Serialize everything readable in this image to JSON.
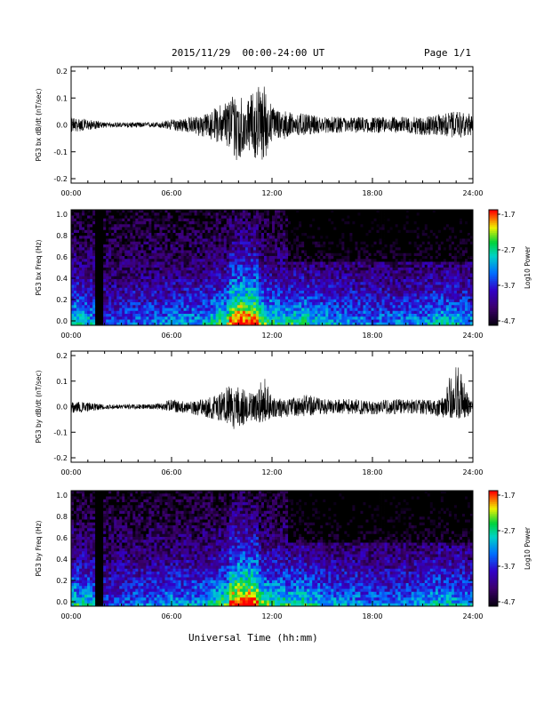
{
  "header": {
    "title": "2015/11/29  00:00-24:00 UT",
    "page": "Page 1/1"
  },
  "x_axis_title": "Universal Time (hh:mm)",
  "chart_data": [
    {
      "type": "line",
      "ylabel": "PG3 bx dB/dt (nT/sec)",
      "ylim": [
        -0.2,
        0.2
      ],
      "yticks": [
        "0.2",
        "0.1",
        "0.0",
        "-0.1",
        "-0.2"
      ],
      "xticks": [
        "00:00",
        "06:00",
        "12:00",
        "18:00",
        "24:00"
      ],
      "xlim_hours": [
        0,
        24
      ],
      "x_hours": [
        0,
        1,
        2,
        3,
        4,
        5,
        6,
        7,
        8,
        9,
        9.5,
        10,
        10.5,
        11,
        11.5,
        12,
        13,
        14,
        15,
        16,
        17,
        18,
        19,
        20,
        21,
        22,
        23,
        24
      ],
      "envelope_max": [
        0.03,
        0.02,
        0.01,
        0.01,
        0.01,
        0.01,
        0.02,
        0.03,
        0.04,
        0.08,
        0.11,
        0.14,
        0.08,
        0.15,
        0.16,
        0.07,
        0.05,
        0.04,
        0.03,
        0.03,
        0.03,
        0.03,
        0.03,
        0.03,
        0.03,
        0.04,
        0.05,
        0.04
      ],
      "envelope_min": [
        -0.03,
        -0.02,
        -0.01,
        -0.01,
        -0.01,
        -0.01,
        -0.02,
        -0.03,
        -0.05,
        -0.07,
        -0.1,
        -0.16,
        -0.08,
        -0.13,
        -0.14,
        -0.06,
        -0.05,
        -0.04,
        -0.03,
        -0.03,
        -0.03,
        -0.03,
        -0.03,
        -0.03,
        -0.04,
        -0.04,
        -0.05,
        -0.04
      ],
      "grid": false
    },
    {
      "type": "heatmap",
      "ylabel": "PG3 bx Freq (Hz)",
      "ylim": [
        0,
        1.0
      ],
      "yticks": [
        "1.0",
        "0.8",
        "0.6",
        "0.4",
        "0.2",
        "0.0"
      ],
      "xticks": [
        "00:00",
        "06:00",
        "12:00",
        "18:00",
        "24:00"
      ],
      "xlim_hours": [
        0,
        24
      ],
      "data_gap_hours": [
        1.5,
        1.9
      ],
      "hotspot_hours": [
        9.5,
        11.2
      ],
      "colorbar": {
        "label": "Log10 Power",
        "ticks": [
          "-1.7",
          "-2.7",
          "-3.7",
          "-4.7"
        ],
        "range": [
          -4.7,
          -1.7
        ]
      }
    },
    {
      "type": "line",
      "ylabel": "PG3 by dB/dt (nT/sec)",
      "ylim": [
        -0.2,
        0.2
      ],
      "yticks": [
        "0.2",
        "0.1",
        "0.0",
        "-0.1",
        "-0.2"
      ],
      "xticks": [
        "00:00",
        "06:00",
        "12:00",
        "18:00",
        "24:00"
      ],
      "xlim_hours": [
        0,
        24
      ],
      "x_hours": [
        0,
        1,
        2,
        3,
        4,
        5,
        6,
        7,
        8,
        9,
        9.5,
        10,
        10.5,
        11,
        11.5,
        12,
        13,
        14,
        15,
        16,
        17,
        18,
        19,
        20,
        21,
        22,
        23,
        24
      ],
      "envelope_max": [
        0.02,
        0.02,
        0.01,
        0.01,
        0.01,
        0.01,
        0.03,
        0.02,
        0.03,
        0.06,
        0.09,
        0.09,
        0.06,
        0.05,
        0.14,
        0.04,
        0.03,
        0.05,
        0.03,
        0.03,
        0.03,
        0.02,
        0.03,
        0.03,
        0.03,
        0.03,
        0.17,
        0.03
      ],
      "envelope_min": [
        -0.03,
        -0.02,
        -0.01,
        -0.01,
        -0.01,
        -0.01,
        -0.02,
        -0.03,
        -0.04,
        -0.06,
        -0.08,
        -0.1,
        -0.07,
        -0.07,
        -0.06,
        -0.05,
        -0.04,
        -0.04,
        -0.03,
        -0.03,
        -0.03,
        -0.03,
        -0.03,
        -0.03,
        -0.03,
        -0.04,
        -0.05,
        -0.04
      ],
      "grid": false
    },
    {
      "type": "heatmap",
      "ylabel": "PG3 by Freq (Hz)",
      "ylim": [
        0,
        1.0
      ],
      "yticks": [
        "1.0",
        "0.8",
        "0.6",
        "0.4",
        "0.2",
        "0.0"
      ],
      "xticks": [
        "00:00",
        "06:00",
        "12:00",
        "18:00",
        "24:00"
      ],
      "xlim_hours": [
        0,
        24
      ],
      "data_gap_hours": [
        1.5,
        1.9
      ],
      "hotspot_hours": [
        9.5,
        11.2
      ],
      "colorbar": {
        "label": "Log10 Power",
        "ticks": [
          "-1.7",
          "-2.7",
          "-3.7",
          "-4.7"
        ],
        "range": [
          -4.7,
          -1.7
        ]
      }
    }
  ]
}
